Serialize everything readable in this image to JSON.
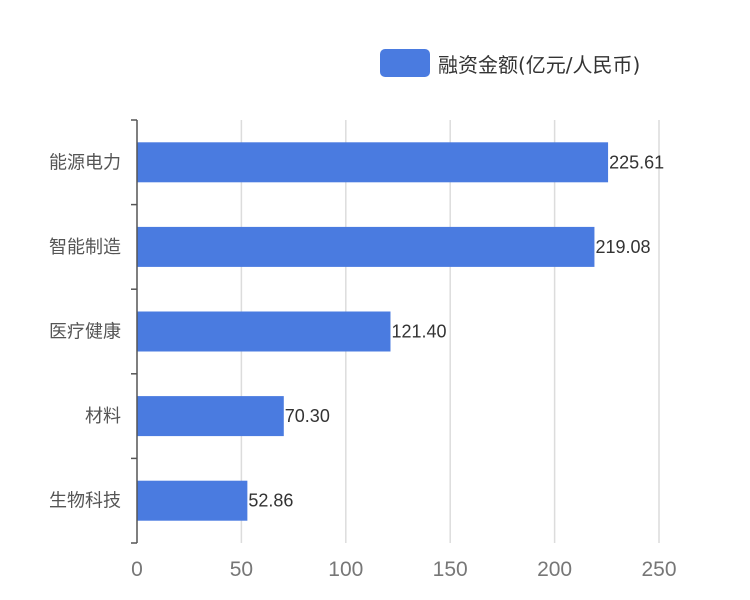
{
  "chart_data": {
    "type": "bar",
    "orientation": "horizontal",
    "categories": [
      "能源电力",
      "智能制造",
      "医疗健康",
      "材料",
      "生物科技"
    ],
    "series": [
      {
        "name": "融资金额(亿元/人民币)",
        "values": [
          225.61,
          219.08,
          121.4,
          70.3,
          52.86
        ],
        "color": "#4a7be0"
      }
    ],
    "value_labels": [
      "225.61",
      "219.08",
      "121.40",
      "70.30",
      "52.86"
    ],
    "xlim": [
      0,
      250
    ],
    "xticks": [
      0,
      50,
      100,
      150,
      200,
      250
    ],
    "grid": true,
    "legend_position": "top-right"
  },
  "colors": {
    "bar": "#4a7be0",
    "grid": "#dcdcdc",
    "axis": "#555555"
  }
}
